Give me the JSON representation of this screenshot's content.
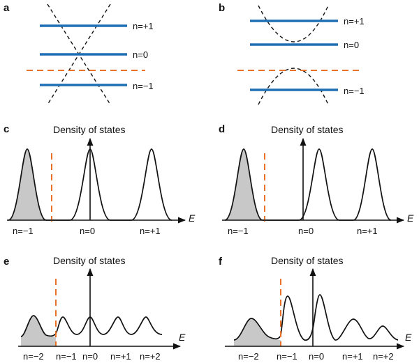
{
  "panels": [
    {
      "letter": "a",
      "levels": [
        "n=+1",
        "n=0",
        "n=−1"
      ]
    },
    {
      "letter": "b",
      "levels": [
        "n=+1",
        "n=0",
        "n=−1"
      ]
    },
    {
      "letter": "c",
      "title": "Density of states",
      "axis": "E",
      "ticks": [
        "n=−1",
        "n=0",
        "n=+1"
      ]
    },
    {
      "letter": "d",
      "title": "Density of states",
      "axis": "E",
      "ticks": [
        "n=−1",
        "n=0",
        "n=+1"
      ]
    },
    {
      "letter": "e",
      "title": "Density of states",
      "axis": "E",
      "ticks": [
        "n=−2",
        "n=−1",
        "n=0",
        "n=+1",
        "n=+2"
      ]
    },
    {
      "letter": "f",
      "title": "Density of states",
      "axis": "E",
      "ticks": [
        "n=−2",
        "n=−1",
        "n=0",
        "n=+1",
        "n=+2"
      ]
    }
  ],
  "colors": {
    "level": "#1f6fb5",
    "fermi": "#e8722a",
    "shade": "#c8c8c8",
    "ink": "#111111"
  },
  "chart_data": [
    {
      "panel": "c",
      "type": "line",
      "peak_heights": [
        1.0,
        1.0,
        1.0
      ],
      "filled_peaks": [
        "n=−1"
      ],
      "fermi_between": [
        "n=−1",
        "n=0"
      ]
    },
    {
      "panel": "d",
      "type": "line",
      "peak_heights": [
        1.0,
        1.0,
        1.0
      ],
      "filled_peaks": [
        "n=−1"
      ],
      "fermi_between": [
        "n=−1",
        "n=0"
      ]
    },
    {
      "panel": "e",
      "type": "line",
      "peak_heights": [
        0.45,
        0.42,
        0.42,
        0.42,
        0.42
      ],
      "filled_peaks": [
        "n=−2"
      ],
      "fermi_between": [
        "n=−2",
        "n=−1"
      ]
    },
    {
      "panel": "f",
      "type": "line",
      "peak_heights": [
        0.38,
        0.67,
        0.68,
        0.26,
        0.16
      ],
      "filled_peaks": [
        "n=−2"
      ],
      "fermi_between": [
        "n=−2",
        "n=−1"
      ]
    }
  ]
}
